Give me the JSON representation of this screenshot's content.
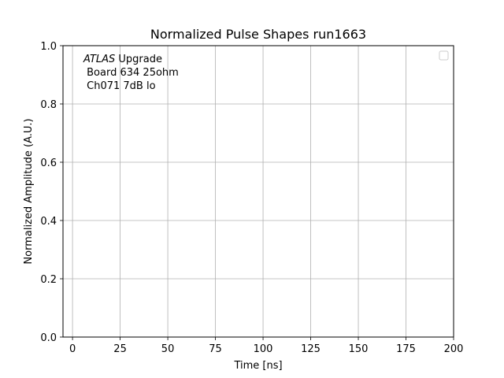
{
  "chart_data": {
    "type": "line",
    "title": "Normalized Pulse Shapes run1663",
    "xlabel": "Time [ns]",
    "ylabel": "Normalized Amplitude (A.U.)",
    "xlim": [
      -5,
      200
    ],
    "ylim": [
      0.0,
      1.0
    ],
    "x_ticks": [
      0,
      25,
      50,
      75,
      100,
      125,
      150,
      175,
      200
    ],
    "x_tick_labels": [
      "0",
      "25",
      "50",
      "75",
      "100",
      "125",
      "150",
      "175",
      "200"
    ],
    "y_ticks": [
      0.0,
      0.2,
      0.4,
      0.6,
      0.8,
      1.0
    ],
    "y_tick_labels": [
      "0.0",
      "0.2",
      "0.4",
      "0.6",
      "0.8",
      "1.0"
    ],
    "grid": true,
    "legend": {
      "placement": "top-right",
      "entries": []
    },
    "series": [],
    "annotation": {
      "italic_prefix": "ATLAS",
      "prefix_rest": " Upgrade",
      "lines": [
        " Board 634 25ohm",
        " Ch071 7dB lo"
      ]
    },
    "colors": {
      "grid": "#b0b0b0",
      "axes": "#000000",
      "legend_border": "#cccccc"
    }
  }
}
